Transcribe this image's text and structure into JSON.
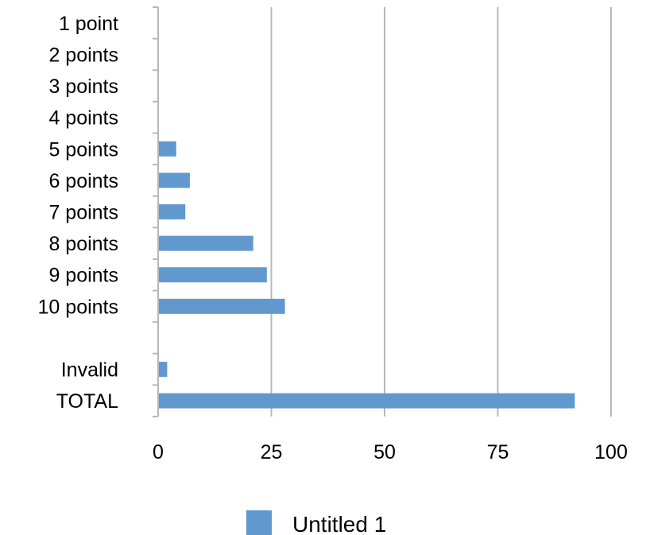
{
  "chart_data": {
    "type": "bar",
    "orientation": "horizontal",
    "categories": [
      "1 point",
      "2 points",
      "3 points",
      "4 points",
      "5 points",
      "6 points",
      "7 points",
      "8 points",
      "9 points",
      "10 points",
      "",
      "Invalid",
      "TOTAL"
    ],
    "series": [
      {
        "name": "Untitled 1",
        "values": [
          0,
          0,
          0,
          0,
          4,
          7,
          6,
          21,
          24,
          28,
          null,
          2,
          92
        ],
        "color": "#6199CF"
      }
    ],
    "xlim": [
      0,
      100
    ],
    "xticks": [
      0,
      25,
      50,
      75,
      100
    ],
    "xtick_labels": [
      "0",
      "25",
      "50",
      "75",
      "100"
    ],
    "grid": true,
    "legend": "bottom",
    "title": "",
    "xlabel": "",
    "ylabel": ""
  },
  "legend": {
    "label": "Untitled 1"
  }
}
